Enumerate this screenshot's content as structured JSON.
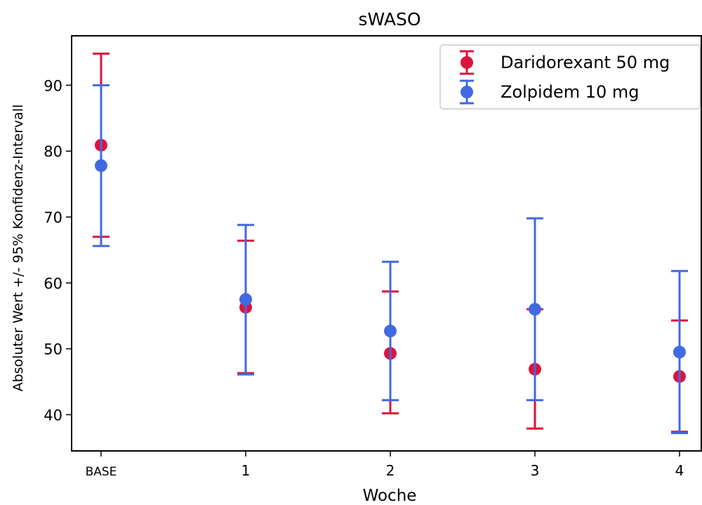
{
  "chart_data": {
    "type": "scatter",
    "title": "sWASO",
    "xlabel": "Woche",
    "ylabel": "Absoluter Wert +/- 95% Konfidenz-Intervall",
    "categories": [
      "BASE",
      "1",
      "2",
      "3",
      "4"
    ],
    "yticks": [
      40,
      50,
      60,
      70,
      80,
      90
    ],
    "ylim": [
      34.5,
      97.5
    ],
    "grid": false,
    "legend_position": "top-right",
    "series": [
      {
        "name": "Daridorexant 50 mg",
        "color": "#dc143c",
        "values": [
          80.9,
          56.3,
          49.3,
          46.9,
          45.8
        ],
        "lower": [
          67.0,
          46.3,
          40.2,
          37.9,
          37.4
        ],
        "upper": [
          94.8,
          66.4,
          58.7,
          56.0,
          54.3
        ]
      },
      {
        "name": "Zolpidem 10 mg",
        "color": "#4169e1",
        "values": [
          77.8,
          57.5,
          52.7,
          56.0,
          49.5
        ],
        "lower": [
          65.6,
          46.1,
          42.2,
          42.2,
          37.2
        ],
        "upper": [
          90.0,
          68.8,
          63.2,
          69.8,
          61.8
        ]
      }
    ]
  }
}
